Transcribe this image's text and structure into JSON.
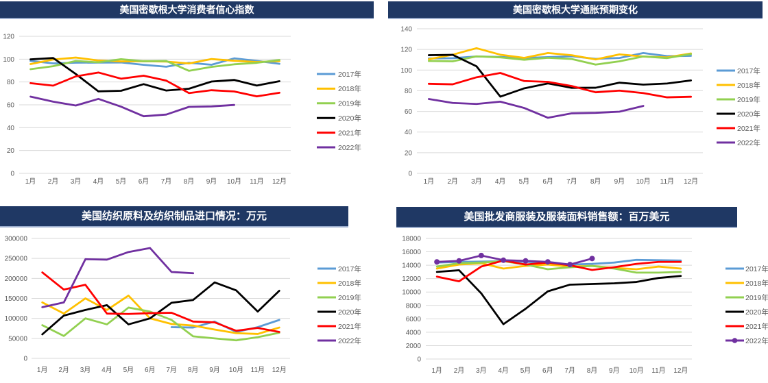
{
  "page": {
    "background": "#ffffff",
    "title_bar_color": "#1f3864",
    "title_text_color": "#ffffff",
    "grid_color": "#d9d9d9",
    "axis_text_color": "#595959"
  },
  "chart_data": [
    {
      "type": "line",
      "title": "美国密歇根大学消费者信心指数",
      "ylim": [
        0,
        120
      ],
      "ytick": 20,
      "grid": true,
      "legend_position": "right",
      "categories": [
        "1月",
        "2月",
        "3月",
        "4月",
        "5月",
        "6月",
        "7月",
        "8月",
        "9月",
        "10月",
        "11月",
        "12月"
      ],
      "series": [
        {
          "name": "2017年",
          "color": "#5B9BD5",
          "values": [
            98.5,
            96.3,
            96.9,
            97,
            97.1,
            95,
            93.4,
            96.8,
            95.1,
            100.7,
            98.5,
            95.9
          ]
        },
        {
          "name": "2018年",
          "color": "#FFC000",
          "values": [
            95.7,
            99.7,
            101.4,
            98.8,
            98,
            98.2,
            97.9,
            96.2,
            100.1,
            98.6,
            97.5,
            98.3
          ]
        },
        {
          "name": "2019年",
          "color": "#92D050",
          "values": [
            91.2,
            93.8,
            98.4,
            97.2,
            100,
            98.2,
            98.4,
            89.8,
            93.2,
            95.5,
            96.8,
            99.3
          ]
        },
        {
          "name": "2020年",
          "color": "#000000",
          "values": [
            99.8,
            101,
            87,
            71.8,
            72.3,
            78.1,
            72.5,
            74.1,
            80.4,
            81.8,
            76.9,
            80.7
          ]
        },
        {
          "name": "2021年",
          "color": "#FF0000",
          "values": [
            79,
            76.8,
            84.9,
            88.3,
            82.9,
            85.5,
            81.2,
            70.3,
            72.8,
            71.7,
            67.4,
            70.6
          ]
        },
        {
          "name": "2022年",
          "color": "#7030A0",
          "values": [
            67.2,
            62.8,
            59.4,
            65.2,
            58.4,
            50,
            51.5,
            58.2,
            58.6,
            59.9
          ]
        }
      ]
    },
    {
      "type": "line",
      "title": "美国密歇根大学通胀预期变化",
      "ylim": [
        0,
        140
      ],
      "ytick": 20,
      "grid": true,
      "legend_position": "right",
      "categories": [
        "1月",
        "2月",
        "3月",
        "4月",
        "5月",
        "6月",
        "7月",
        "8月",
        "9月",
        "10月",
        "11月",
        "12月"
      ],
      "series": [
        {
          "name": "2017年",
          "color": "#5B9BD5",
          "values": [
            111.3,
            111.5,
            113.2,
            112.7,
            111.7,
            112.5,
            113.4,
            110.9,
            111.7,
            116.5,
            113.5,
            113.8
          ]
        },
        {
          "name": "2018年",
          "color": "#FFC000",
          "values": [
            110.5,
            114.9,
            121.2,
            114.9,
            111.8,
            116.5,
            114.4,
            110.3,
            115.2,
            113.1,
            112.3,
            116.1
          ]
        },
        {
          "name": "2019年",
          "color": "#92D050",
          "values": [
            108.8,
            108.5,
            113.3,
            112.3,
            110,
            111.9,
            110.7,
            105.3,
            108.5,
            113.2,
            111.6,
            115.5
          ]
        },
        {
          "name": "2020年",
          "color": "#000000",
          "values": [
            114.4,
            114.8,
            103.7,
            74.3,
            82.3,
            87.1,
            82.8,
            82.9,
            87.8,
            85.9,
            87,
            90
          ]
        },
        {
          "name": "2021年",
          "color": "#FF0000",
          "values": [
            86.7,
            86.2,
            93,
            97.2,
            89.4,
            88.6,
            84.5,
            78.5,
            80.1,
            77.7,
            73.6,
            74.2
          ]
        },
        {
          "name": "2022年",
          "color": "#7030A0",
          "values": [
            72,
            68.2,
            67.2,
            69.4,
            63.3,
            53.8,
            58.1,
            58.6,
            59.7,
            65.3
          ]
        }
      ]
    },
    {
      "type": "line",
      "title": "美国纺织原料及纺织制品进口情况：万元",
      "ylim": [
        0,
        300000
      ],
      "ytick": 50000,
      "grid": true,
      "legend_position": "right",
      "categories": [
        "1月",
        "2月",
        "3月",
        "4月",
        "5月",
        "6月",
        "7月",
        "8月",
        "9月",
        "10月",
        "11月",
        "12月"
      ],
      "series": [
        {
          "name": "2017年",
          "color": "#5B9BD5",
          "values": [
            null,
            null,
            null,
            null,
            null,
            null,
            78000,
            77000,
            92000,
            66000,
            78000,
            96000
          ]
        },
        {
          "name": "2018年",
          "color": "#FFC000",
          "values": [
            140000,
            112000,
            150000,
            121000,
            157000,
            100000,
            86000,
            82000,
            72000,
            63000,
            61000,
            77000
          ]
        },
        {
          "name": "2019年",
          "color": "#92D050",
          "values": [
            83000,
            56000,
            100000,
            85000,
            127000,
            117000,
            96000,
            55000,
            50000,
            45000,
            53000,
            64000
          ]
        },
        {
          "name": "2020年",
          "color": "#000000",
          "values": [
            60000,
            107000,
            121000,
            133000,
            85000,
            100000,
            139000,
            146000,
            190000,
            170000,
            117000,
            169000
          ]
        },
        {
          "name": "2021年",
          "color": "#FF0000",
          "values": [
            215000,
            172000,
            184000,
            112000,
            111000,
            113000,
            114000,
            92000,
            90000,
            69000,
            76000,
            66000
          ]
        },
        {
          "name": "2022年",
          "color": "#7030A0",
          "values": [
            128000,
            140000,
            248000,
            247000,
            266000,
            276000,
            216000,
            213000
          ]
        }
      ]
    },
    {
      "type": "line",
      "title": "美国批发商服装及服装面料销售额：百万美元",
      "ylim": [
        0,
        18000
      ],
      "ytick": 2000,
      "grid": true,
      "legend_position": "right",
      "categories": [
        "1月",
        "2月",
        "3月",
        "4月",
        "5月",
        "6月",
        "7月",
        "8月",
        "9月",
        "10月",
        "11月",
        "12月"
      ],
      "series": [
        {
          "name": "2017年",
          "color": "#5B9BD5",
          "values": [
            14400,
            14500,
            14550,
            14600,
            14500,
            14400,
            14100,
            14200,
            14400,
            14800,
            14750,
            14700
          ]
        },
        {
          "name": "2018年",
          "color": "#FFC000",
          "values": [
            13500,
            14100,
            14300,
            13500,
            13900,
            14100,
            13800,
            13900,
            13600,
            13400,
            13800,
            13500
          ]
        },
        {
          "name": "2019年",
          "color": "#92D050",
          "values": [
            13800,
            14300,
            14400,
            14600,
            14100,
            13400,
            13700,
            13900,
            13500,
            12900,
            12900,
            13000
          ]
        },
        {
          "name": "2020年",
          "color": "#000000",
          "values": [
            13000,
            13250,
            9800,
            5200,
            7500,
            10100,
            11100,
            11200,
            11300,
            11500,
            12100,
            12400
          ]
        },
        {
          "name": "2021年",
          "color": "#FF0000",
          "values": [
            12300,
            11600,
            13800,
            14700,
            14100,
            14400,
            14000,
            13300,
            13700,
            14200,
            14500,
            14500
          ]
        },
        {
          "name": "2022年",
          "color": "#7030A0",
          "marker": true,
          "values": [
            14500,
            14650,
            15450,
            14750,
            14650,
            14500,
            14100,
            15000
          ]
        }
      ]
    }
  ]
}
